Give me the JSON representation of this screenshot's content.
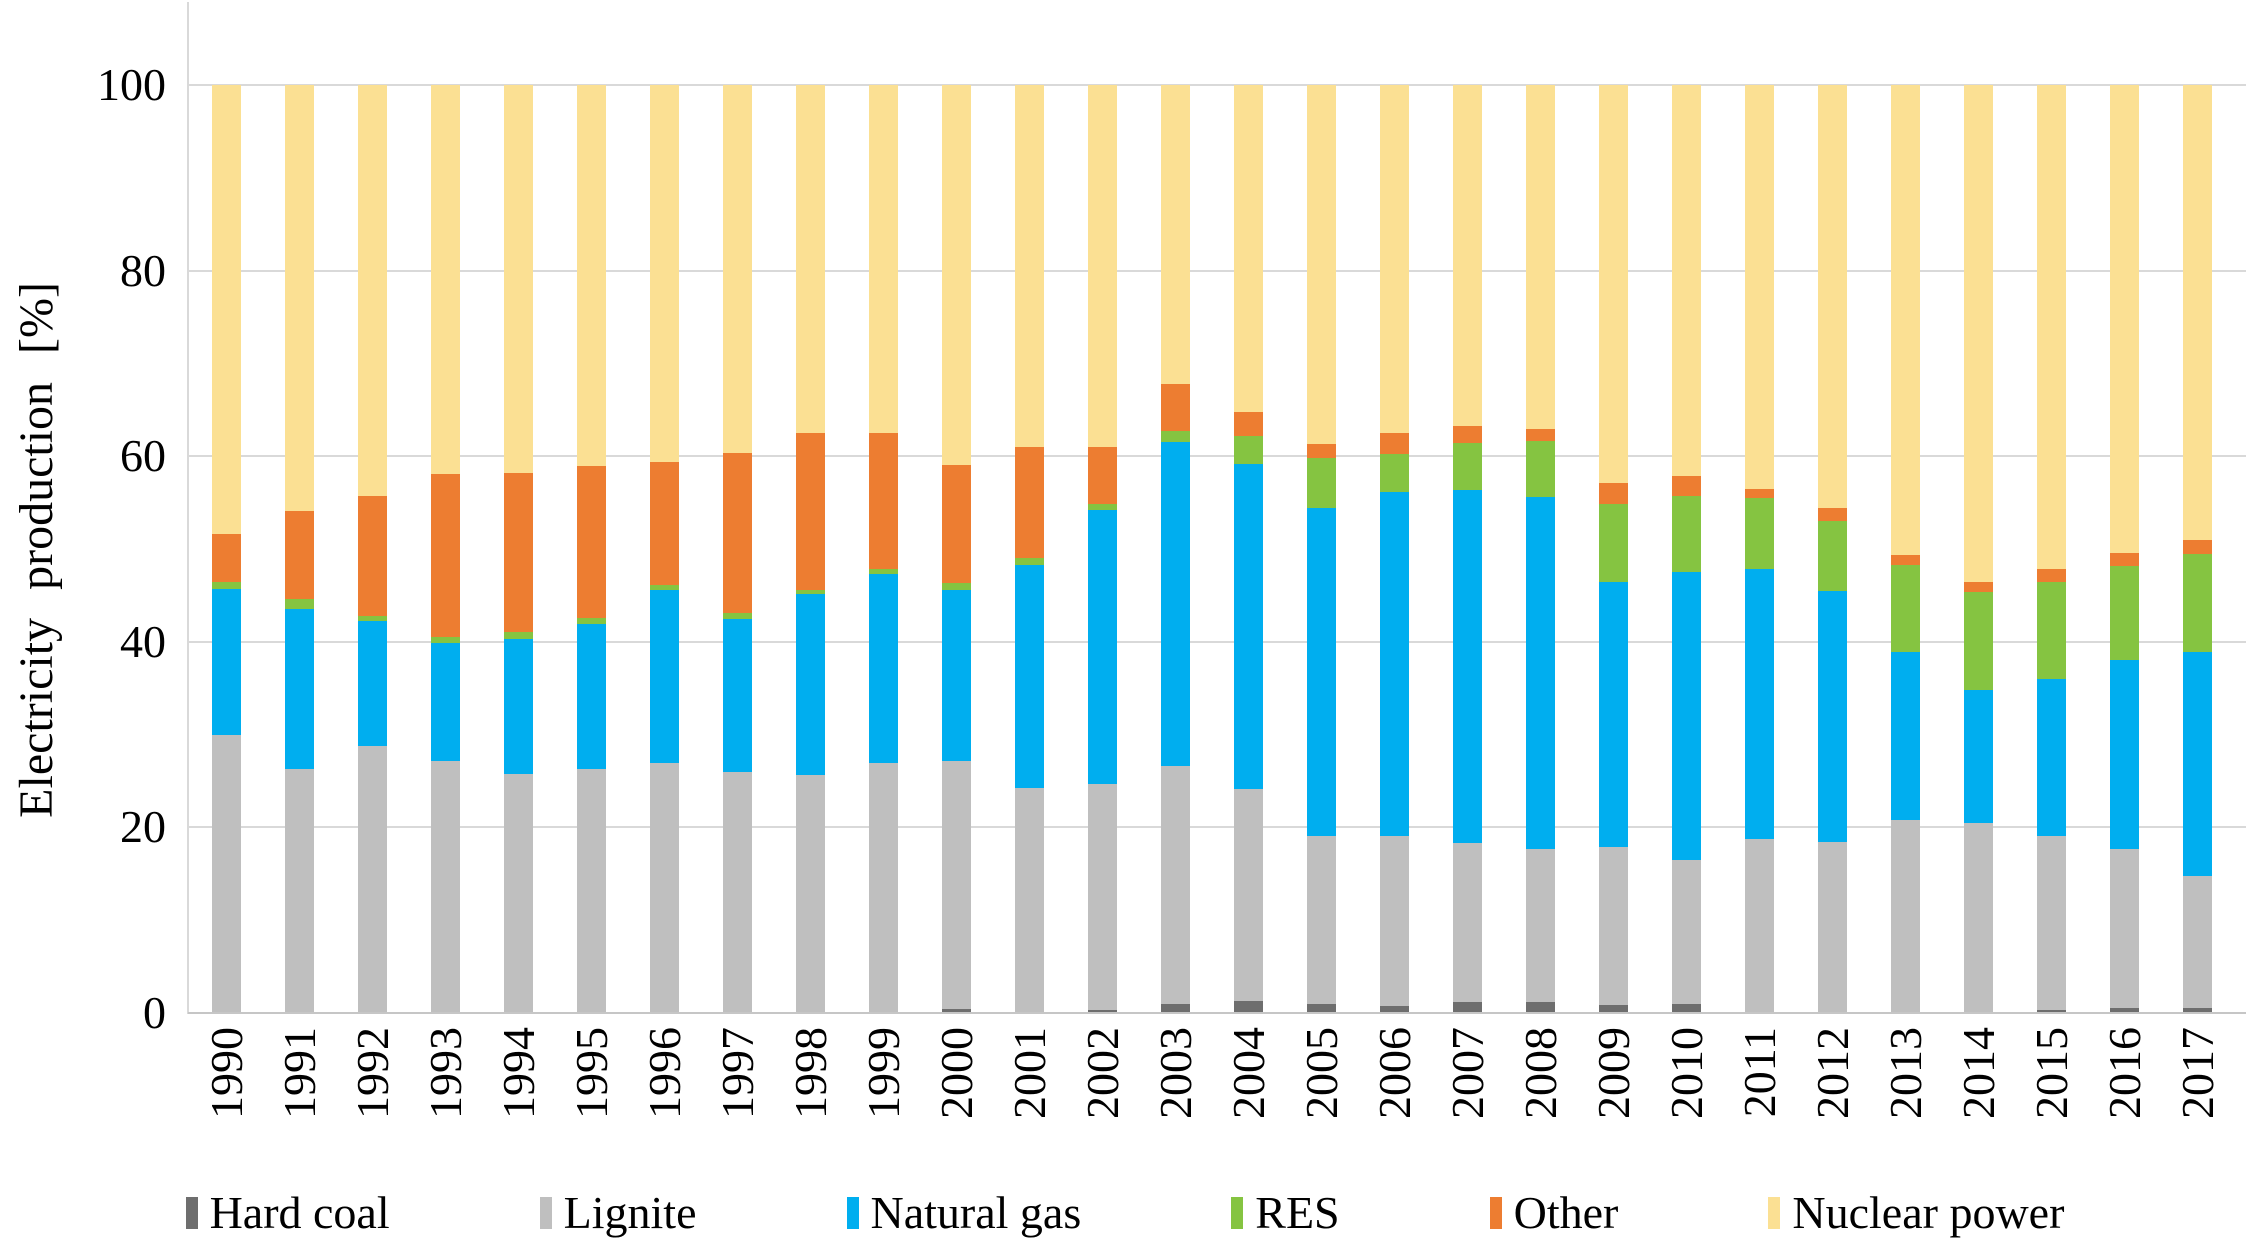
{
  "y_axis": {
    "label": "Electricity production [%]",
    "ticks": [
      0,
      20,
      40,
      60,
      80,
      100
    ]
  },
  "x_axis": {
    "labels": [
      "1990",
      "1991",
      "1992",
      "1993",
      "1994",
      "1995",
      "1996",
      "1997",
      "1998",
      "1999",
      "2000",
      "2001",
      "2002",
      "2003",
      "2004",
      "2005",
      "2006",
      "2007",
      "2008",
      "2009",
      "2010",
      "2011",
      "2012",
      "2013",
      "2014",
      "2015",
      "2016",
      "2017"
    ]
  },
  "legend": {
    "items": [
      "Hard coal",
      "Lignite",
      "Natural gas",
      "RES",
      "Other",
      "Nuclear power"
    ]
  },
  "colors": {
    "hard_coal": "#6e6e6e",
    "lignite": "#bfbfbf",
    "natural_gas": "#00aeef",
    "res": "#85c441",
    "other": "#ed7d31",
    "nuclear": "#fbe093",
    "gridline": "#d9d9d9"
  },
  "chart_data": {
    "type": "bar",
    "stacked": true,
    "title": "",
    "xlabel": "",
    "ylabel": "Electricity production [%]",
    "ylim": [
      0,
      100
    ],
    "grid": true,
    "legend_position": "bottom",
    "categories": [
      "1990",
      "1991",
      "1992",
      "1993",
      "1994",
      "1995",
      "1996",
      "1997",
      "1998",
      "1999",
      "2000",
      "2001",
      "2002",
      "2003",
      "2004",
      "2005",
      "2006",
      "2007",
      "2008",
      "2009",
      "2010",
      "2011",
      "2012",
      "2013",
      "2014",
      "2015",
      "2016",
      "2017"
    ],
    "series": [
      {
        "name": "Hard coal",
        "color": "#6e6e6e",
        "values": [
          0,
          0,
          0,
          0,
          0,
          0,
          0,
          0,
          0,
          0,
          0.4,
          0,
          0.3,
          1.0,
          1.3,
          1.0,
          0.8,
          1.2,
          1.2,
          0.9,
          1.0,
          0.1,
          0.1,
          0.1,
          0.1,
          0.3,
          0.5,
          0.5
        ]
      },
      {
        "name": "Lignite",
        "color": "#bfbfbf",
        "values": [
          30.0,
          26.3,
          28.8,
          27.2,
          25.8,
          26.3,
          26.9,
          26.0,
          25.7,
          26.9,
          26.8,
          24.2,
          24.4,
          25.6,
          22.8,
          18.1,
          18.3,
          17.1,
          16.5,
          17.0,
          15.5,
          18.6,
          18.3,
          20.7,
          20.4,
          18.8,
          17.2,
          14.3
        ]
      },
      {
        "name": "Natural gas",
        "color": "#00aeef",
        "values": [
          15.7,
          17.2,
          13.4,
          12.7,
          14.5,
          15.6,
          18.7,
          16.5,
          19.4,
          20.4,
          18.4,
          24.1,
          29.5,
          34.9,
          35.1,
          35.3,
          37.0,
          38.1,
          37.9,
          28.6,
          31.0,
          29.1,
          27.1,
          18.1,
          14.3,
          16.9,
          20.3,
          24.1
        ]
      },
      {
        "name": "RES",
        "color": "#85c441",
        "values": [
          0.7,
          1.1,
          0.6,
          0.6,
          0.8,
          0.7,
          0.5,
          0.6,
          0.5,
          0.5,
          0.7,
          0.7,
          0.7,
          1.2,
          3.0,
          5.4,
          4.1,
          5.0,
          6.0,
          8.3,
          8.2,
          7.7,
          7.5,
          9.4,
          10.6,
          10.5,
          10.2,
          10.6
        ]
      },
      {
        "name": "Other",
        "color": "#ed7d31",
        "values": [
          5.2,
          9.5,
          12.9,
          17.6,
          17.1,
          16.3,
          13.3,
          17.3,
          16.9,
          14.7,
          12.8,
          12.0,
          6.1,
          5.1,
          2.6,
          1.5,
          2.3,
          1.9,
          1.3,
          2.3,
          2.2,
          1.0,
          1.4,
          1.1,
          1.0,
          1.3,
          1.4,
          1.5
        ]
      },
      {
        "name": "Nuclear power",
        "color": "#fbe093",
        "values": [
          48.4,
          45.9,
          44.3,
          41.9,
          41.8,
          41.1,
          40.6,
          39.6,
          37.5,
          37.5,
          40.9,
          39.0,
          39.0,
          32.2,
          35.2,
          38.7,
          37.5,
          36.7,
          37.1,
          42.9,
          42.1,
          43.5,
          45.6,
          50.6,
          53.6,
          52.2,
          50.4,
          49.0
        ]
      }
    ]
  }
}
